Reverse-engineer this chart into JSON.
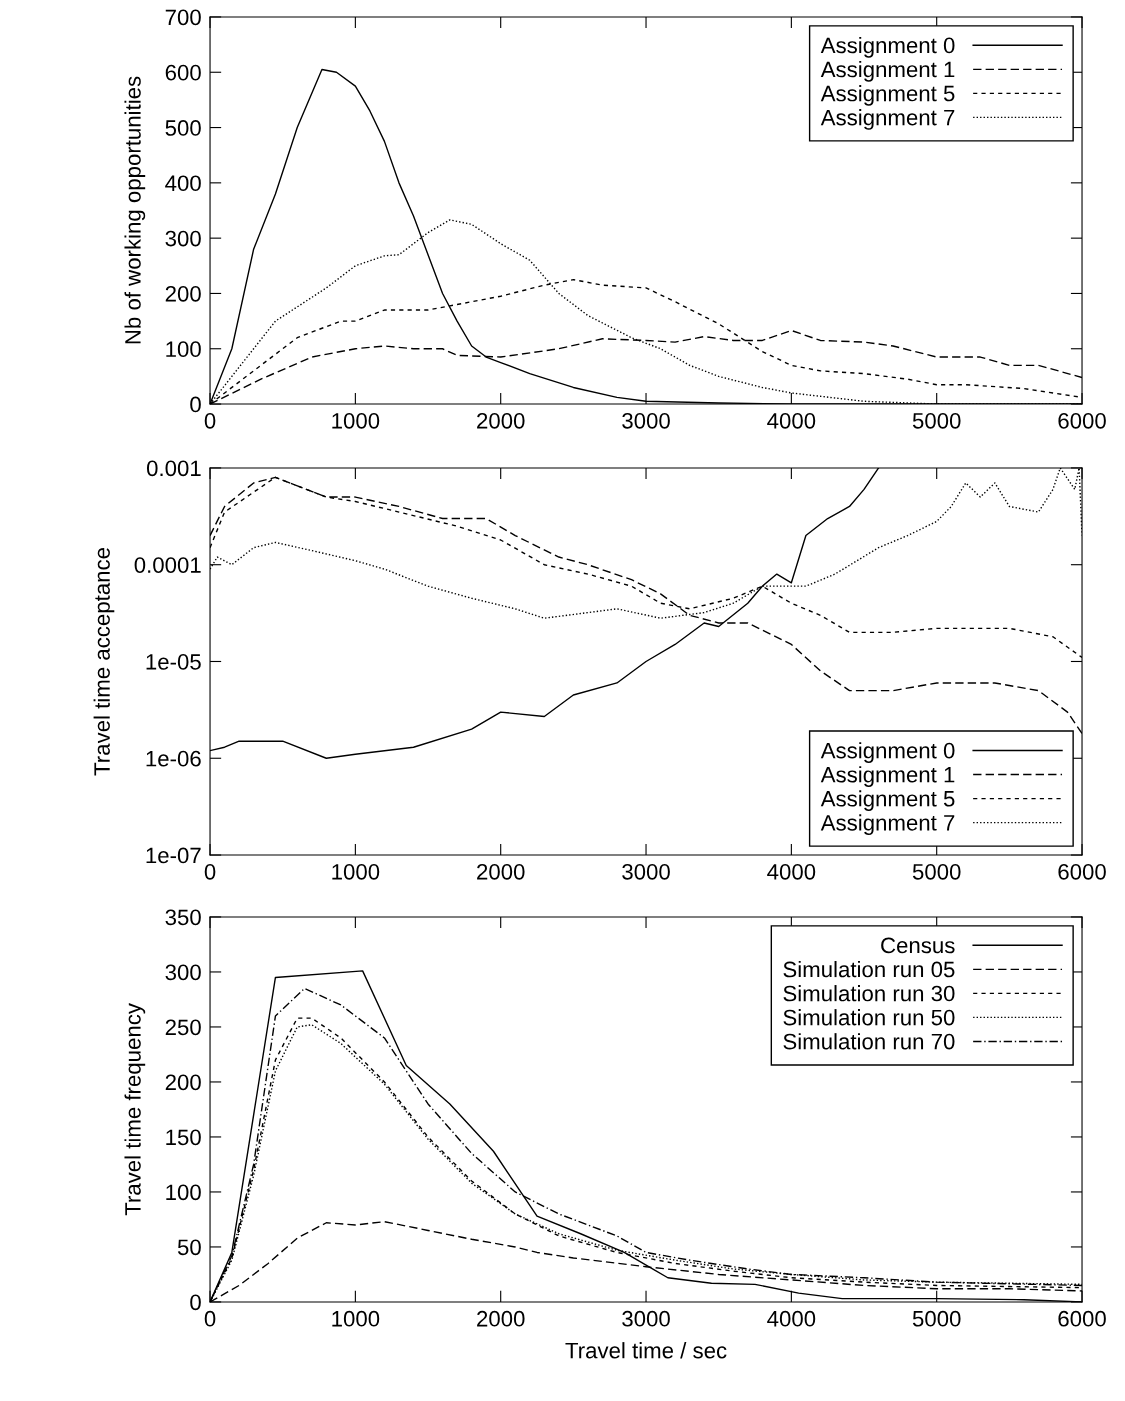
{
  "chart_data": [
    {
      "type": "line",
      "ylabel": "Nb of working opportunities",
      "xlim": [
        0,
        6000
      ],
      "ylim": [
        0,
        700
      ],
      "xticks": [
        0,
        1000,
        2000,
        3000,
        4000,
        5000,
        6000
      ],
      "yticks": [
        0,
        100,
        200,
        300,
        400,
        500,
        600,
        700
      ],
      "legend": "top right",
      "grid": false,
      "series": [
        {
          "name": "Assignment 0",
          "color": "#000000",
          "line_style": "solid",
          "x": [
            0,
            150,
            300,
            450,
            600,
            770,
            870,
            1000,
            1100,
            1200,
            1300,
            1400,
            1500,
            1600,
            1700,
            1800,
            1900,
            2000,
            2200,
            2500,
            2800,
            3000,
            3500,
            4000,
            5000,
            6000
          ],
          "values": [
            0,
            100,
            280,
            380,
            500,
            605,
            600,
            575,
            530,
            475,
            400,
            340,
            270,
            200,
            150,
            105,
            85,
            75,
            55,
            30,
            12,
            5,
            2,
            0,
            0,
            0
          ]
        },
        {
          "name": "Assignment 1",
          "color": "#000000",
          "line_style": "dashed",
          "x": [
            0,
            350,
            700,
            1000,
            1200,
            1400,
            1600,
            1700,
            2000,
            2400,
            2700,
            3000,
            3200,
            3400,
            3600,
            3800,
            4000,
            4200,
            4500,
            4700,
            5000,
            5300,
            5500,
            5700,
            6000
          ],
          "values": [
            0,
            45,
            85,
            100,
            105,
            100,
            100,
            88,
            85,
            100,
            118,
            115,
            112,
            122,
            115,
            115,
            133,
            115,
            112,
            105,
            85,
            85,
            70,
            70,
            48
          ]
        },
        {
          "name": "Assignment 5",
          "color": "#000000",
          "line_style": "dashed",
          "x": [
            0,
            300,
            600,
            900,
            1000,
            1200,
            1500,
            1700,
            2000,
            2300,
            2500,
            2700,
            3000,
            3200,
            3500,
            3800,
            4000,
            4200,
            4500,
            4800,
            5000,
            5200,
            5600,
            6000
          ],
          "values": [
            0,
            60,
            120,
            150,
            150,
            170,
            170,
            180,
            195,
            215,
            225,
            215,
            210,
            185,
            145,
            95,
            70,
            60,
            55,
            45,
            35,
            35,
            28,
            12
          ]
        },
        {
          "name": "Assignment 7",
          "color": "#000000",
          "line_style": "dotted",
          "x": [
            0,
            300,
            450,
            800,
            1000,
            1200,
            1300,
            1500,
            1650,
            1800,
            2000,
            2200,
            2400,
            2600,
            2900,
            3100,
            3300,
            3500,
            3800,
            4000,
            4500,
            5000,
            6000
          ],
          "values": [
            0,
            100,
            150,
            210,
            250,
            268,
            270,
            310,
            333,
            325,
            290,
            260,
            200,
            160,
            120,
            100,
            70,
            50,
            30,
            20,
            5,
            0,
            0
          ]
        }
      ]
    },
    {
      "type": "line",
      "ylabel": "Travel time acceptance",
      "log": "y",
      "xlim": [
        0,
        6000
      ],
      "ylim": [
        1e-07,
        0.001
      ],
      "xticks": [
        0,
        1000,
        2000,
        3000,
        4000,
        5000,
        6000
      ],
      "yticks": [
        {
          "value": 1e-07,
          "label": "1e-07"
        },
        {
          "value": 1e-06,
          "label": "1e-06"
        },
        {
          "value": 1e-05,
          "label": "1e-05"
        },
        {
          "value": 0.0001,
          "label": "0.0001"
        },
        {
          "value": 0.001,
          "label": "0.001"
        }
      ],
      "legend": "bottom right",
      "grid": false,
      "series": [
        {
          "name": "Assignment 0",
          "color": "#000000",
          "line_style": "solid",
          "x": [
            0,
            100,
            200,
            500,
            800,
            1000,
            1400,
            1800,
            2000,
            2300,
            2500,
            2800,
            3000,
            3200,
            3400,
            3500,
            3700,
            3800,
            3900,
            4000,
            4100,
            4250,
            4400,
            4500,
            4600
          ],
          "values": [
            1.2e-06,
            1.3e-06,
            1.5e-06,
            1.5e-06,
            1e-06,
            1.1e-06,
            1.3e-06,
            2e-06,
            3e-06,
            2.7e-06,
            4.5e-06,
            6e-06,
            1e-05,
            1.5e-05,
            2.5e-05,
            2.3e-05,
            4e-05,
            6e-05,
            8e-05,
            6.5e-05,
            0.0002,
            0.0003,
            0.0004,
            0.0006,
            0.001
          ]
        },
        {
          "name": "Assignment 1",
          "color": "#000000",
          "line_style": "dashed",
          "x": [
            0,
            100,
            300,
            450,
            800,
            1000,
            1300,
            1600,
            1900,
            2100,
            2400,
            2600,
            2900,
            3100,
            3300,
            3500,
            3700,
            4000,
            4200,
            4400,
            4700,
            5000,
            5400,
            5700,
            5900,
            6000
          ],
          "values": [
            0.0002,
            0.0004,
            0.0007,
            0.0008,
            0.0005,
            0.0005,
            0.0004,
            0.0003,
            0.0003,
            0.0002,
            0.00012,
            0.0001,
            7e-05,
            5e-05,
            3e-05,
            2.5e-05,
            2.5e-05,
            1.5e-05,
            8e-06,
            5e-06,
            5e-06,
            6e-06,
            6e-06,
            5e-06,
            3e-06,
            1.8e-06
          ]
        },
        {
          "name": "Assignment 5",
          "color": "#000000",
          "line_style": "dashed",
          "x": [
            0,
            100,
            450,
            800,
            1000,
            1300,
            1700,
            2000,
            2300,
            2600,
            2900,
            3100,
            3300,
            3600,
            3800,
            4000,
            4200,
            4400,
            4700,
            5000,
            5500,
            5800,
            6000
          ],
          "values": [
            0.00015,
            0.00035,
            0.0008,
            0.0005,
            0.00045,
            0.00035,
            0.00025,
            0.00018,
            0.0001,
            8e-05,
            6e-05,
            4e-05,
            3.5e-05,
            4.5e-05,
            6e-05,
            4e-05,
            3e-05,
            2e-05,
            2e-05,
            2.2e-05,
            2.2e-05,
            1.8e-05,
            1.1e-05
          ]
        },
        {
          "name": "Assignment 7",
          "color": "#000000",
          "line_style": "dotted",
          "x": [
            0,
            50,
            150,
            300,
            450,
            700,
            1000,
            1200,
            1500,
            1800,
            2100,
            2300,
            2600,
            2800,
            3100,
            3400,
            3600,
            3800,
            4100,
            4300,
            4600,
            4800,
            5000,
            5100,
            5200,
            5300,
            5400,
            5500,
            5700,
            5800,
            5850,
            5950,
            5980,
            6000
          ],
          "values": [
            9e-05,
            0.00012,
            0.0001,
            0.00015,
            0.00017,
            0.00014,
            0.00011,
            9e-05,
            6e-05,
            4.5e-05,
            3.5e-05,
            2.8e-05,
            3.2e-05,
            3.5e-05,
            2.8e-05,
            3.2e-05,
            4e-05,
            6e-05,
            6e-05,
            8e-05,
            0.00015,
            0.0002,
            0.00028,
            0.0004,
            0.0007,
            0.0005,
            0.0007,
            0.0004,
            0.00035,
            0.0006,
            0.001,
            0.0006,
            0.001,
            0.0002
          ]
        }
      ]
    },
    {
      "type": "line",
      "ylabel": "Travel time frequency",
      "xlabel": "Travel time / sec",
      "xlim": [
        0,
        6000
      ],
      "ylim": [
        0,
        350
      ],
      "xticks": [
        0,
        1000,
        2000,
        3000,
        4000,
        5000,
        6000
      ],
      "yticks": [
        0,
        50,
        100,
        150,
        200,
        250,
        300,
        350
      ],
      "legend": "top right",
      "grid": false,
      "series": [
        {
          "name": "Census",
          "color": "#000000",
          "line_style": "solid",
          "x": [
            0,
            150,
            450,
            1050,
            1350,
            1650,
            1950,
            2250,
            2550,
            2850,
            3150,
            3450,
            3750,
            4050,
            4350,
            5000,
            5600,
            6000
          ],
          "values": [
            0,
            45,
            295,
            301,
            215,
            180,
            137,
            78,
            62,
            45,
            22,
            17,
            16,
            8,
            3,
            3,
            2,
            0
          ]
        },
        {
          "name": "Simulation run 05",
          "color": "#000000",
          "line_style": "dashed",
          "x": [
            0,
            200,
            400,
            600,
            800,
            1000,
            1200,
            1500,
            1800,
            2100,
            2250,
            2500,
            3000,
            3500,
            4000,
            4500,
            5000,
            5500,
            6000
          ],
          "values": [
            0,
            15,
            35,
            58,
            72,
            70,
            73,
            65,
            57,
            50,
            45,
            40,
            32,
            25,
            20,
            15,
            12,
            12,
            10
          ]
        },
        {
          "name": "Simulation run 30",
          "color": "#000000",
          "line_style": "dashed",
          "x": [
            0,
            150,
            300,
            450,
            600,
            700,
            900,
            1200,
            1500,
            1800,
            2100,
            2400,
            2800,
            3200,
            3600,
            4000,
            4500,
            5000,
            5500,
            6000
          ],
          "values": [
            0,
            40,
            120,
            220,
            258,
            258,
            240,
            200,
            150,
            110,
            80,
            60,
            45,
            35,
            28,
            22,
            18,
            15,
            14,
            13
          ]
        },
        {
          "name": "Simulation run 50",
          "color": "#000000",
          "line_style": "dotted",
          "x": [
            0,
            150,
            300,
            450,
            600,
            700,
            900,
            1200,
            1500,
            1800,
            2100,
            2400,
            2800,
            3200,
            3600,
            4000,
            4500,
            5000,
            5500,
            6000
          ],
          "values": [
            0,
            38,
            115,
            210,
            250,
            252,
            235,
            198,
            148,
            108,
            80,
            62,
            47,
            38,
            30,
            25,
            20,
            18,
            17,
            16
          ]
        },
        {
          "name": "Simulation run 70",
          "color": "#000000",
          "line_style": "dashdot",
          "x": [
            0,
            150,
            300,
            450,
            650,
            900,
            1200,
            1500,
            1800,
            2100,
            2400,
            2800,
            3000,
            3300,
            3700,
            4000,
            4500,
            5000,
            6000
          ],
          "values": [
            0,
            42,
            125,
            260,
            285,
            270,
            240,
            180,
            135,
            100,
            80,
            60,
            45,
            38,
            30,
            25,
            22,
            18,
            15
          ]
        }
      ]
    }
  ]
}
